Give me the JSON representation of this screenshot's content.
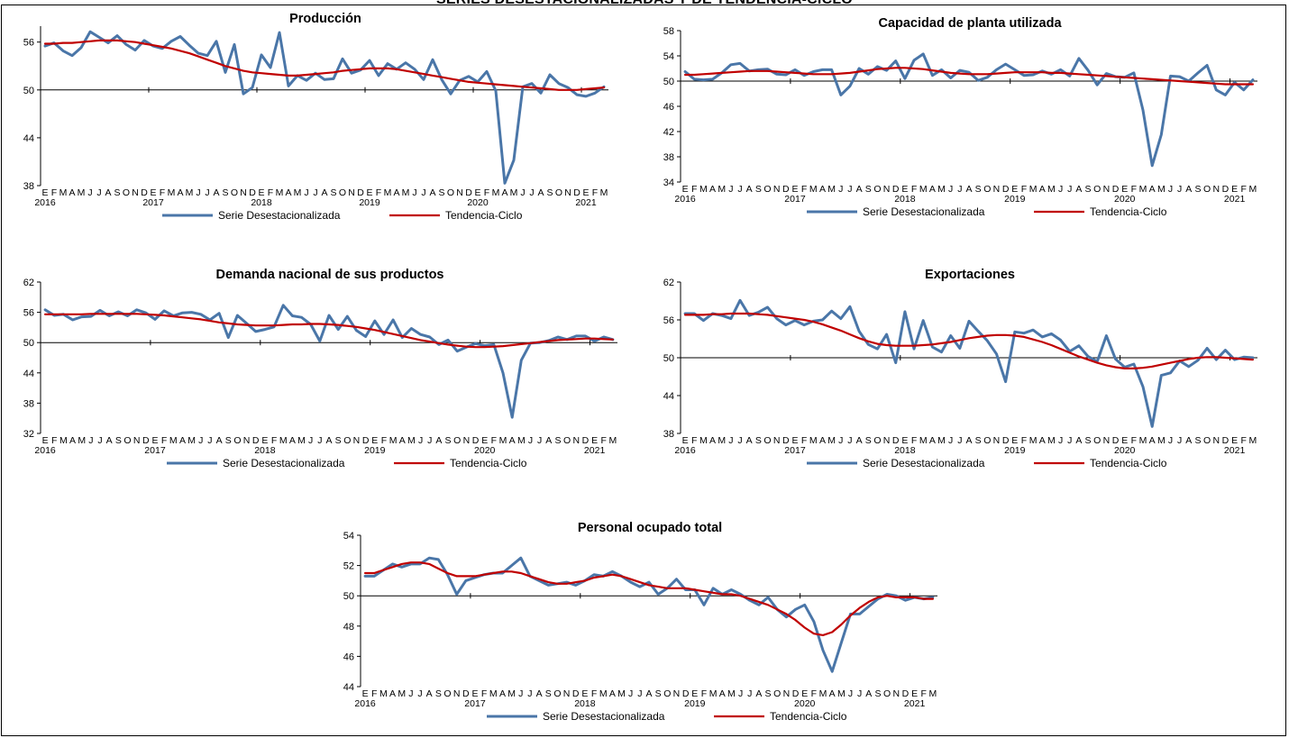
{
  "page": {
    "title": "SERIES DESESTACIONALIZADAS Y DE TENDENCIA-CICLO"
  },
  "style": {
    "series_color": "#4a76a8",
    "trend_color": "#c00000",
    "axis_color": "#000000"
  },
  "x_axis": {
    "month_letters": [
      "E",
      "F",
      "M",
      "A",
      "M",
      "J",
      "J",
      "A",
      "S",
      "O",
      "N",
      "D",
      "E",
      "F",
      "M",
      "A",
      "M",
      "J",
      "J",
      "A",
      "S",
      "O",
      "N",
      "D",
      "E",
      "F",
      "M",
      "A",
      "M",
      "J",
      "J",
      "A",
      "S",
      "O",
      "N",
      "D",
      "E",
      "F",
      "M",
      "A",
      "M",
      "J",
      "J",
      "A",
      "S",
      "O",
      "N",
      "D",
      "E",
      "F",
      "M",
      "A",
      "M",
      "J",
      "J",
      "A",
      "S",
      "O",
      "N",
      "D",
      "E",
      "F",
      "M"
    ],
    "years": [
      "2016",
      "2017",
      "2018",
      "2019",
      "2020",
      "2021"
    ]
  },
  "legend": {
    "series_label": "Serie Desestacionalizada",
    "trend_label": "Tendencia-Ciclo"
  },
  "chart_data": [
    {
      "type": "line",
      "title": "Producción",
      "ylim": [
        38,
        58
      ],
      "yticks": [
        38,
        44,
        50,
        56
      ],
      "reference_line": 50,
      "series": [
        {
          "name": "Serie Desestacionalizada",
          "values": [
            55.5,
            55.9,
            54.9,
            54.3,
            55.3,
            57.3,
            56.6,
            55.9,
            56.8,
            55.7,
            55.0,
            56.2,
            55.5,
            55.2,
            56.1,
            56.7,
            55.6,
            54.6,
            54.3,
            56.1,
            52.2,
            55.7,
            49.5,
            50.3,
            54.4,
            52.8,
            57.2,
            50.5,
            51.8,
            51.2,
            52.1,
            51.3,
            51.4,
            53.9,
            52.1,
            52.5,
            53.7,
            51.8,
            53.3,
            52.6,
            53.4,
            52.6,
            51.3,
            53.8,
            51.3,
            49.5,
            51.2,
            51.7,
            51.0,
            52.3,
            49.9,
            38.3,
            41.2,
            50.4,
            50.8,
            49.6,
            51.9,
            50.8,
            50.3,
            49.4,
            49.2,
            49.6,
            50.4
          ]
        },
        {
          "name": "Tendencia-Ciclo",
          "values": [
            55.8,
            55.8,
            55.9,
            55.9,
            56.0,
            56.1,
            56.2,
            56.2,
            56.2,
            56.1,
            56.0,
            55.8,
            55.6,
            55.4,
            55.2,
            54.9,
            54.6,
            54.2,
            53.8,
            53.4,
            53.0,
            52.7,
            52.4,
            52.2,
            52.1,
            52.0,
            51.9,
            51.8,
            51.8,
            51.9,
            52.0,
            52.1,
            52.2,
            52.4,
            52.5,
            52.6,
            52.7,
            52.7,
            52.7,
            52.6,
            52.4,
            52.2,
            52.0,
            51.8,
            51.6,
            51.4,
            51.2,
            51.0,
            50.9,
            50.8,
            50.7,
            50.6,
            50.5,
            50.4,
            50.3,
            50.2,
            50.1,
            50.0,
            50.0,
            50.0,
            50.1,
            50.2,
            50.3
          ]
        }
      ]
    },
    {
      "type": "line",
      "title": "Capacidad de planta utilizada",
      "ylim": [
        34,
        58
      ],
      "yticks": [
        34,
        38,
        42,
        46,
        50,
        54,
        58
      ],
      "reference_line": 50,
      "series": [
        {
          "name": "Serie Desestacionalizada",
          "values": [
            51.5,
            50.3,
            50.2,
            50.3,
            51.3,
            52.6,
            52.8,
            51.6,
            51.8,
            51.9,
            51.1,
            51.0,
            51.8,
            50.9,
            51.5,
            51.8,
            51.8,
            47.8,
            49.2,
            52.0,
            51.1,
            52.3,
            51.7,
            53.2,
            50.4,
            53.3,
            54.3,
            50.9,
            51.8,
            50.5,
            51.7,
            51.4,
            50.1,
            50.6,
            51.8,
            52.7,
            51.8,
            50.9,
            51.0,
            51.6,
            51.1,
            51.8,
            50.8,
            53.6,
            51.7,
            49.4,
            51.2,
            50.7,
            50.6,
            51.3,
            45.4,
            36.6,
            41.5,
            50.8,
            50.7,
            50.0,
            51.3,
            52.5,
            48.6,
            47.8,
            49.8,
            48.6,
            50.2
          ]
        },
        {
          "name": "Tendencia-Ciclo",
          "values": [
            51.0,
            51.0,
            51.1,
            51.2,
            51.3,
            51.4,
            51.5,
            51.6,
            51.6,
            51.6,
            51.5,
            51.4,
            51.3,
            51.2,
            51.1,
            51.1,
            51.1,
            51.2,
            51.3,
            51.5,
            51.7,
            51.9,
            52.0,
            52.1,
            52.1,
            52.0,
            51.9,
            51.7,
            51.5,
            51.3,
            51.2,
            51.1,
            51.1,
            51.1,
            51.2,
            51.3,
            51.4,
            51.4,
            51.4,
            51.4,
            51.3,
            51.3,
            51.2,
            51.1,
            51.0,
            50.9,
            50.8,
            50.7,
            50.6,
            50.5,
            50.4,
            50.3,
            50.2,
            50.1,
            50.0,
            49.9,
            49.8,
            49.7,
            49.6,
            49.5,
            49.5,
            49.5,
            49.5
          ]
        }
      ]
    },
    {
      "type": "line",
      "title": "Demanda nacional de sus productos",
      "ylim": [
        32,
        62
      ],
      "yticks": [
        32,
        38,
        44,
        50,
        56,
        62
      ],
      "reference_line": 50,
      "series": [
        {
          "name": "Serie Desestacionalizada",
          "values": [
            56.5,
            55.4,
            55.6,
            54.5,
            55.1,
            55.2,
            56.4,
            55.3,
            56.1,
            55.3,
            56.5,
            55.9,
            54.6,
            56.3,
            55.3,
            55.9,
            56.0,
            55.6,
            54.5,
            55.8,
            51.0,
            55.4,
            53.8,
            52.2,
            52.6,
            53.1,
            57.4,
            55.3,
            55.0,
            53.6,
            50.3,
            55.4,
            52.6,
            55.2,
            52.4,
            51.2,
            54.3,
            51.6,
            54.5,
            51.0,
            52.8,
            51.6,
            51.1,
            49.6,
            50.5,
            48.3,
            49.1,
            49.8,
            49.4,
            49.6,
            44.0,
            35.2,
            46.5,
            49.9,
            50.0,
            50.4,
            51.1,
            50.6,
            51.3,
            51.3,
            50.3,
            51.1,
            50.6
          ]
        },
        {
          "name": "Tendencia-Ciclo",
          "values": [
            55.6,
            55.6,
            55.6,
            55.6,
            55.6,
            55.7,
            55.7,
            55.7,
            55.7,
            55.7,
            55.7,
            55.6,
            55.5,
            55.4,
            55.2,
            55.0,
            54.8,
            54.6,
            54.3,
            54.0,
            53.8,
            53.6,
            53.5,
            53.4,
            53.4,
            53.4,
            53.5,
            53.6,
            53.6,
            53.7,
            53.7,
            53.6,
            53.5,
            53.3,
            53.1,
            52.8,
            52.5,
            52.1,
            51.7,
            51.3,
            50.9,
            50.5,
            50.2,
            49.9,
            49.6,
            49.4,
            49.2,
            49.1,
            49.1,
            49.2,
            49.3,
            49.5,
            49.7,
            49.9,
            50.1,
            50.3,
            50.5,
            50.6,
            50.7,
            50.8,
            50.8,
            50.7,
            50.6
          ]
        }
      ]
    },
    {
      "type": "line",
      "title": "Exportaciones",
      "ylim": [
        38,
        62
      ],
      "yticks": [
        38,
        44,
        50,
        56,
        62
      ],
      "reference_line": 50,
      "series": [
        {
          "name": "Serie Desestacionalizada",
          "values": [
            57.0,
            57.0,
            55.9,
            57.0,
            56.7,
            56.2,
            59.1,
            56.7,
            57.2,
            58.0,
            56.2,
            55.2,
            55.9,
            55.2,
            55.8,
            56.0,
            57.4,
            56.2,
            58.1,
            54.2,
            52.1,
            51.4,
            53.7,
            49.2,
            57.3,
            51.4,
            55.9,
            51.7,
            50.9,
            53.5,
            51.5,
            55.8,
            54.2,
            52.7,
            50.6,
            46.2,
            54.1,
            53.9,
            54.4,
            53.3,
            53.8,
            52.8,
            51.0,
            51.9,
            50.2,
            49.4,
            53.5,
            49.8,
            48.5,
            49.0,
            45.4,
            39.1,
            47.2,
            47.6,
            49.5,
            48.6,
            49.6,
            51.5,
            49.7,
            51.2,
            49.7,
            50.1,
            50.0
          ]
        },
        {
          "name": "Tendencia-Ciclo",
          "values": [
            56.8,
            56.8,
            56.8,
            56.9,
            56.9,
            57.0,
            57.0,
            57.0,
            56.9,
            56.8,
            56.6,
            56.4,
            56.2,
            56.0,
            55.7,
            55.3,
            54.8,
            54.3,
            53.7,
            53.1,
            52.6,
            52.2,
            52.0,
            51.9,
            51.9,
            51.9,
            52.0,
            52.1,
            52.3,
            52.5,
            52.8,
            53.1,
            53.3,
            53.5,
            53.6,
            53.6,
            53.5,
            53.3,
            52.9,
            52.5,
            52.0,
            51.4,
            50.8,
            50.2,
            49.7,
            49.2,
            48.8,
            48.5,
            48.3,
            48.3,
            48.4,
            48.6,
            48.9,
            49.2,
            49.5,
            49.8,
            50.0,
            50.1,
            50.1,
            50.0,
            49.9,
            49.8,
            49.7
          ]
        }
      ]
    },
    {
      "type": "line",
      "title": "Personal ocupado total",
      "ylim": [
        44,
        54
      ],
      "yticks": [
        44,
        46,
        48,
        50,
        52,
        54
      ],
      "reference_line": 50,
      "series": [
        {
          "name": "Serie Desestacionalizada",
          "values": [
            51.3,
            51.3,
            51.7,
            52.1,
            51.9,
            52.1,
            52.1,
            52.5,
            52.4,
            51.4,
            50.1,
            51.0,
            51.2,
            51.4,
            51.5,
            51.5,
            52.0,
            52.5,
            51.3,
            51.0,
            50.7,
            50.8,
            50.9,
            50.7,
            51.0,
            51.4,
            51.3,
            51.6,
            51.3,
            50.9,
            50.6,
            50.9,
            50.1,
            50.5,
            51.1,
            50.4,
            50.4,
            49.4,
            50.5,
            50.1,
            50.4,
            50.1,
            49.7,
            49.4,
            49.9,
            49.1,
            48.6,
            49.1,
            49.4,
            48.3,
            46.4,
            45.0,
            46.9,
            48.8,
            48.8,
            49.3,
            49.8,
            50.1,
            50.0,
            49.7,
            49.9,
            49.8,
            49.9
          ]
        },
        {
          "name": "Tendencia-Ciclo",
          "values": [
            51.5,
            51.5,
            51.7,
            51.9,
            52.1,
            52.2,
            52.2,
            52.1,
            51.8,
            51.5,
            51.3,
            51.3,
            51.3,
            51.4,
            51.5,
            51.6,
            51.6,
            51.5,
            51.3,
            51.1,
            50.9,
            50.8,
            50.8,
            50.9,
            51.0,
            51.2,
            51.3,
            51.4,
            51.3,
            51.1,
            50.9,
            50.7,
            50.6,
            50.5,
            50.5,
            50.5,
            50.4,
            50.3,
            50.2,
            50.1,
            50.1,
            50.0,
            49.8,
            49.6,
            49.4,
            49.1,
            48.8,
            48.4,
            47.9,
            47.5,
            47.4,
            47.6,
            48.1,
            48.7,
            49.2,
            49.6,
            49.9,
            50.0,
            49.9,
            49.9,
            49.9,
            49.8,
            49.8
          ]
        }
      ]
    }
  ]
}
